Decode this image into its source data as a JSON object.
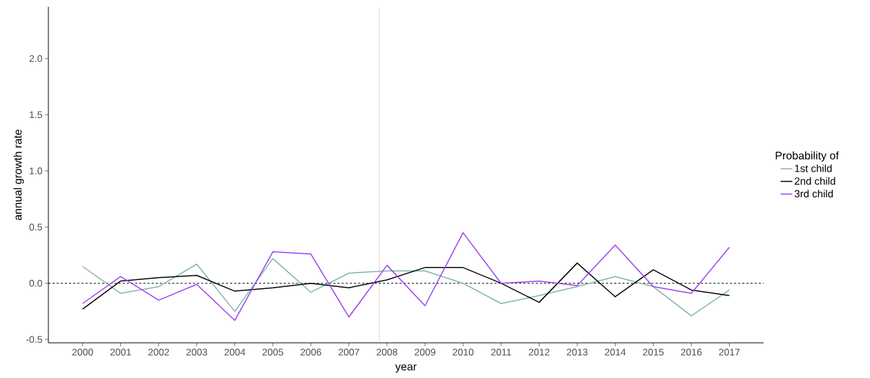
{
  "chart_data": {
    "type": "line",
    "xlabel": "year",
    "ylabel": "annual growth rate",
    "legend_title": "Probability of",
    "legend": "right",
    "grid": false,
    "marker": "none",
    "line_style": "solid",
    "x": [
      2000,
      2001,
      2002,
      2003,
      2004,
      2005,
      2006,
      2007,
      2008,
      2009,
      2010,
      2011,
      2012,
      2013,
      2014,
      2015,
      2016,
      2017
    ],
    "xlim": [
      1999.1,
      2017.9
    ],
    "xticks": [
      2000,
      2001,
      2002,
      2003,
      2004,
      2005,
      2006,
      2007,
      2008,
      2009,
      2010,
      2011,
      2012,
      2013,
      2014,
      2015,
      2016,
      2017
    ],
    "ylim": [
      -0.53,
      2.46
    ],
    "yticks": [
      -0.5,
      {
        "value": 0,
        "label": "0.0"
      },
      0.5,
      {
        "value": 1,
        "label": "1.0"
      },
      1.5,
      {
        "value": 2,
        "label": "2.0"
      }
    ],
    "series": [
      {
        "name": "1st child",
        "color": "#7fb5a5",
        "values": [
          0.15,
          -0.09,
          -0.03,
          0.17,
          -0.25,
          0.22,
          -0.08,
          0.09,
          0.11,
          0.11,
          0.0,
          -0.18,
          -0.11,
          -0.03,
          0.06,
          -0.03,
          -0.29,
          -0.06
        ]
      },
      {
        "name": "2nd child",
        "color": "#000000",
        "values": [
          -0.23,
          0.02,
          0.05,
          0.07,
          -0.07,
          -0.04,
          0.0,
          -0.04,
          0.03,
          0.14,
          0.14,
          0.0,
          -0.17,
          0.18,
          -0.12,
          0.12,
          -0.06,
          -0.11
        ]
      },
      {
        "name": "3rd child",
        "color": "#9b3ff0",
        "values": [
          -0.18,
          0.06,
          -0.15,
          -0.01,
          -0.33,
          0.28,
          0.26,
          -0.3,
          0.16,
          -0.2,
          0.45,
          0.0,
          0.02,
          -0.02,
          0.34,
          -0.03,
          -0.09,
          0.32
        ]
      }
    ],
    "ref_lines": [
      {
        "axis": "y",
        "value": 0,
        "color": "#000000",
        "line_style": "dashed"
      },
      {
        "axis": "x",
        "value": 2007.8,
        "color": "#e0605a",
        "line_style": "dotted"
      }
    ]
  }
}
